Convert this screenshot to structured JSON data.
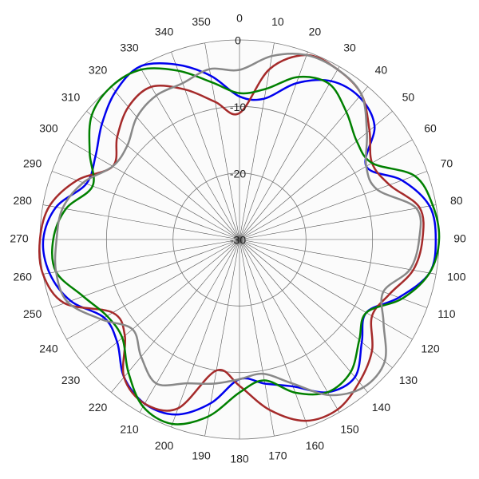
{
  "chart_data": {
    "type": "polar",
    "theta": [
      0,
      10,
      20,
      30,
      40,
      50,
      60,
      70,
      80,
      90,
      100,
      110,
      120,
      130,
      140,
      150,
      160,
      170,
      180,
      190,
      200,
      210,
      220,
      230,
      240,
      250,
      260,
      270,
      280,
      290,
      300,
      310,
      320,
      330,
      340,
      350
    ],
    "rlim": [
      -30,
      0
    ],
    "rticks": [
      0,
      -10,
      -20,
      -30
    ],
    "grid": true,
    "series": [
      {
        "color": "#0000ee",
        "values": [
          -8.5,
          -8.5,
          -5,
          -2.5,
          -2,
          -3.5,
          -8,
          -4,
          -1,
          -0.5,
          -1,
          -4.5,
          -8,
          -6,
          -3,
          -3.5,
          -6.5,
          -8,
          -9,
          -5,
          -2,
          -1.5,
          -3,
          -6,
          -6.5,
          -3,
          -1,
          -0.5,
          -2,
          -5.5,
          -5,
          -3,
          -1,
          0,
          -2,
          -5
        ]
      },
      {
        "color": "#a52a2a",
        "values": [
          -11,
          -4,
          -0.5,
          -0.5,
          -1.5,
          -4.5,
          -7,
          -6,
          -2.5,
          -2.5,
          -3.5,
          -6,
          -7,
          -4,
          -2,
          -0.5,
          -1,
          -4,
          -8,
          -10,
          -3,
          -1.5,
          -3,
          -7.5,
          -8,
          -2,
          0,
          0,
          -1,
          -4,
          -8,
          -6,
          -4,
          -3.5,
          -6,
          -9
        ]
      },
      {
        "color": "#008000",
        "values": [
          -8,
          -7,
          -4,
          -3,
          -5,
          -7,
          -7,
          -2,
          -0.5,
          0,
          -1,
          -4,
          -8,
          -6.5,
          -4,
          -3.5,
          -5.5,
          -8.5,
          -7,
          -3,
          -0.5,
          -1,
          -4,
          -7,
          -7,
          -5,
          -2,
          -2,
          -3.5,
          -6.5,
          -4,
          -1,
          0,
          -0.5,
          -3,
          -6
        ]
      },
      {
        "color": "#888888",
        "values": [
          -4.5,
          -2,
          -0.5,
          -0.5,
          -1.5,
          -5,
          -8,
          -8,
          -3,
          -3,
          -4,
          -7,
          -5,
          -1.5,
          -1,
          -3,
          -7,
          -9.5,
          -9,
          -8,
          -7,
          -5,
          -7,
          -9,
          -6,
          -2.5,
          -2,
          -2.5,
          -3,
          -5,
          -8,
          -8,
          -6,
          -5,
          -5,
          -4
        ]
      }
    ]
  }
}
